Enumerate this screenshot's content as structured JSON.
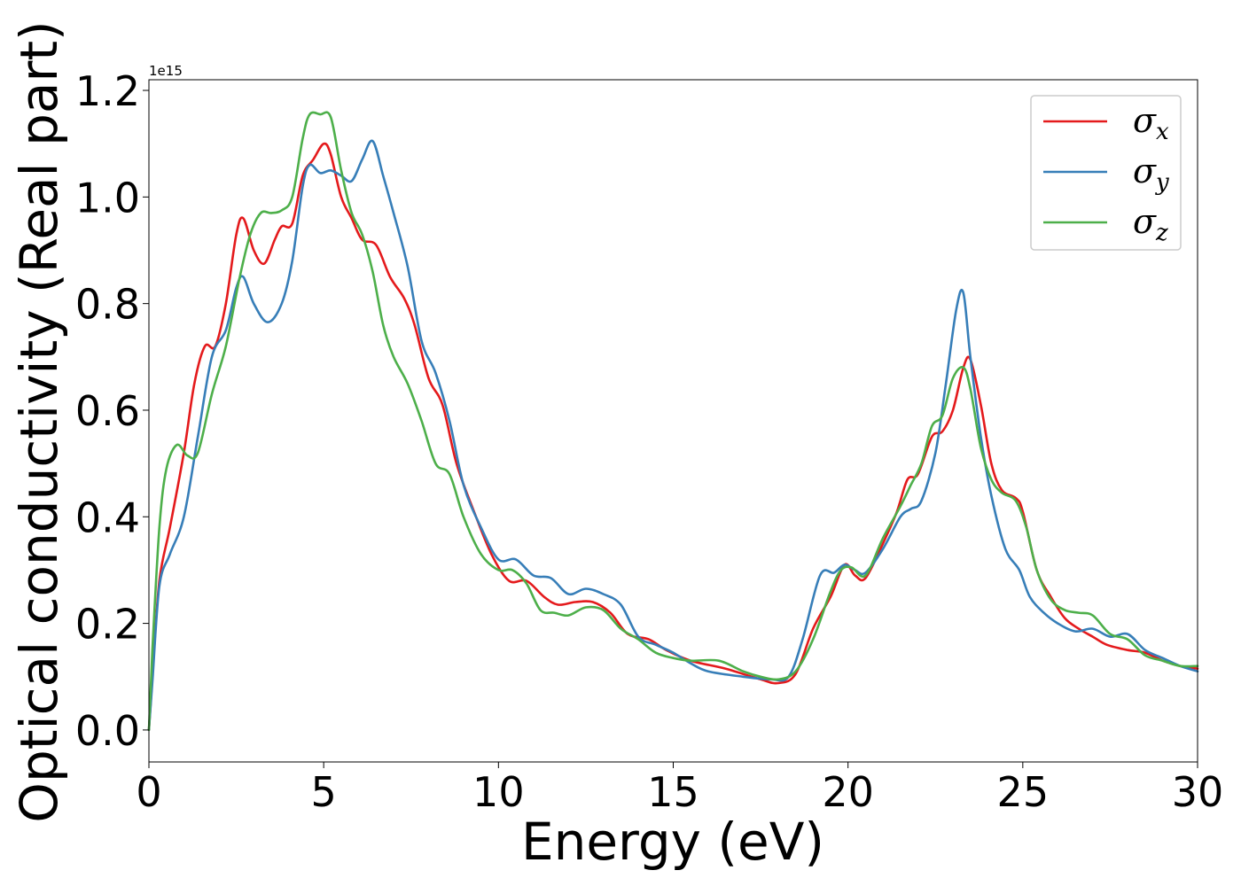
{
  "chart_data": {
    "type": "line",
    "title": "",
    "xlabel": "Energy (eV)",
    "ylabel": "Optical conductivity (Real part)",
    "y_offset_text": "1e15",
    "y_scale_factor": 1000000000000000.0,
    "xlim": [
      0,
      30
    ],
    "ylim": [
      -0.06,
      1.22
    ],
    "xticks": [
      0,
      5,
      10,
      15,
      20,
      25,
      30
    ],
    "xtick_labels": [
      "0",
      "5",
      "10",
      "15",
      "20",
      "25",
      "30"
    ],
    "yticks": [
      0.0,
      0.2,
      0.4,
      0.6,
      0.8,
      1.0,
      1.2
    ],
    "ytick_labels": [
      "0.0",
      "0.2",
      "0.4",
      "0.6",
      "0.8",
      "1.0",
      "1.2"
    ],
    "grid": false,
    "legend_position": "top-right",
    "series": [
      {
        "name": "σx",
        "label_base": "σ",
        "label_sub": "x",
        "color": "#e41a1c",
        "points": [
          [
            0,
            0
          ],
          [
            0.1,
            0.1
          ],
          [
            0.3,
            0.28
          ],
          [
            0.6,
            0.38
          ],
          [
            1.0,
            0.52
          ],
          [
            1.3,
            0.65
          ],
          [
            1.6,
            0.72
          ],
          [
            1.9,
            0.72
          ],
          [
            2.2,
            0.8
          ],
          [
            2.5,
            0.93
          ],
          [
            2.7,
            0.96
          ],
          [
            3.0,
            0.9
          ],
          [
            3.3,
            0.875
          ],
          [
            3.6,
            0.92
          ],
          [
            3.8,
            0.945
          ],
          [
            4.1,
            0.95
          ],
          [
            4.4,
            1.04
          ],
          [
            4.7,
            1.07
          ],
          [
            5.0,
            1.1
          ],
          [
            5.2,
            1.08
          ],
          [
            5.5,
            1.0
          ],
          [
            5.8,
            0.96
          ],
          [
            6.1,
            0.92
          ],
          [
            6.5,
            0.91
          ],
          [
            6.9,
            0.85
          ],
          [
            7.3,
            0.81
          ],
          [
            7.6,
            0.76
          ],
          [
            8.0,
            0.66
          ],
          [
            8.4,
            0.61
          ],
          [
            8.8,
            0.5
          ],
          [
            9.3,
            0.41
          ],
          [
            9.8,
            0.33
          ],
          [
            10.3,
            0.28
          ],
          [
            10.8,
            0.28
          ],
          [
            11.3,
            0.25
          ],
          [
            11.7,
            0.235
          ],
          [
            12.2,
            0.24
          ],
          [
            12.7,
            0.24
          ],
          [
            13.2,
            0.22
          ],
          [
            13.7,
            0.18
          ],
          [
            14.3,
            0.17
          ],
          [
            14.8,
            0.15
          ],
          [
            15.5,
            0.13
          ],
          [
            16.5,
            0.115
          ],
          [
            17.5,
            0.095
          ],
          [
            18.0,
            0.088
          ],
          [
            18.5,
            0.105
          ],
          [
            19.0,
            0.19
          ],
          [
            19.5,
            0.25
          ],
          [
            19.9,
            0.31
          ],
          [
            20.2,
            0.29
          ],
          [
            20.5,
            0.285
          ],
          [
            21.0,
            0.35
          ],
          [
            21.4,
            0.41
          ],
          [
            21.7,
            0.47
          ],
          [
            22.0,
            0.48
          ],
          [
            22.4,
            0.55
          ],
          [
            22.7,
            0.56
          ],
          [
            23.0,
            0.6
          ],
          [
            23.3,
            0.68
          ],
          [
            23.5,
            0.695
          ],
          [
            23.8,
            0.61
          ],
          [
            24.1,
            0.5
          ],
          [
            24.4,
            0.45
          ],
          [
            24.8,
            0.435
          ],
          [
            25.0,
            0.41
          ],
          [
            25.4,
            0.3
          ],
          [
            25.8,
            0.25
          ],
          [
            26.2,
            0.21
          ],
          [
            26.6,
            0.19
          ],
          [
            27.0,
            0.175
          ],
          [
            27.4,
            0.16
          ],
          [
            28.0,
            0.15
          ],
          [
            28.5,
            0.145
          ],
          [
            29.0,
            0.13
          ],
          [
            29.5,
            0.12
          ],
          [
            30.0,
            0.115
          ]
        ]
      },
      {
        "name": "σy",
        "label_base": "σ",
        "label_sub": "y",
        "color": "#377eb8",
        "points": [
          [
            0,
            0
          ],
          [
            0.1,
            0.09
          ],
          [
            0.3,
            0.27
          ],
          [
            0.6,
            0.33
          ],
          [
            1.0,
            0.4
          ],
          [
            1.4,
            0.55
          ],
          [
            1.8,
            0.7
          ],
          [
            2.2,
            0.75
          ],
          [
            2.5,
            0.83
          ],
          [
            2.7,
            0.85
          ],
          [
            3.0,
            0.8
          ],
          [
            3.4,
            0.765
          ],
          [
            3.8,
            0.8
          ],
          [
            4.1,
            0.88
          ],
          [
            4.4,
            1.02
          ],
          [
            4.6,
            1.06
          ],
          [
            4.9,
            1.045
          ],
          [
            5.2,
            1.05
          ],
          [
            5.5,
            1.04
          ],
          [
            5.8,
            1.03
          ],
          [
            6.1,
            1.07
          ],
          [
            6.4,
            1.105
          ],
          [
            6.7,
            1.04
          ],
          [
            7.0,
            0.97
          ],
          [
            7.4,
            0.87
          ],
          [
            7.8,
            0.73
          ],
          [
            8.2,
            0.67
          ],
          [
            8.6,
            0.58
          ],
          [
            9.0,
            0.46
          ],
          [
            9.5,
            0.38
          ],
          [
            10.0,
            0.32
          ],
          [
            10.5,
            0.32
          ],
          [
            11.0,
            0.29
          ],
          [
            11.5,
            0.285
          ],
          [
            12.0,
            0.255
          ],
          [
            12.5,
            0.265
          ],
          [
            13.0,
            0.255
          ],
          [
            13.5,
            0.235
          ],
          [
            14.0,
            0.175
          ],
          [
            14.5,
            0.16
          ],
          [
            15.0,
            0.145
          ],
          [
            15.5,
            0.125
          ],
          [
            16.0,
            0.11
          ],
          [
            17.0,
            0.1
          ],
          [
            17.8,
            0.095
          ],
          [
            18.3,
            0.1
          ],
          [
            18.7,
            0.17
          ],
          [
            19.2,
            0.29
          ],
          [
            19.6,
            0.295
          ],
          [
            19.9,
            0.31
          ],
          [
            20.2,
            0.3
          ],
          [
            20.5,
            0.295
          ],
          [
            21.0,
            0.34
          ],
          [
            21.5,
            0.4
          ],
          [
            21.8,
            0.415
          ],
          [
            22.1,
            0.43
          ],
          [
            22.5,
            0.52
          ],
          [
            22.8,
            0.65
          ],
          [
            23.1,
            0.79
          ],
          [
            23.3,
            0.82
          ],
          [
            23.5,
            0.7
          ],
          [
            23.8,
            0.55
          ],
          [
            24.1,
            0.44
          ],
          [
            24.5,
            0.34
          ],
          [
            24.9,
            0.3
          ],
          [
            25.2,
            0.25
          ],
          [
            25.6,
            0.22
          ],
          [
            26.0,
            0.2
          ],
          [
            26.5,
            0.185
          ],
          [
            27.0,
            0.19
          ],
          [
            27.5,
            0.175
          ],
          [
            28.0,
            0.18
          ],
          [
            28.5,
            0.15
          ],
          [
            29.0,
            0.135
          ],
          [
            29.5,
            0.12
          ],
          [
            30.0,
            0.11
          ]
        ]
      },
      {
        "name": "σz",
        "label_base": "σ",
        "label_sub": "z",
        "color": "#4daf4a",
        "points": [
          [
            0,
            0
          ],
          [
            0.1,
            0.15
          ],
          [
            0.3,
            0.38
          ],
          [
            0.5,
            0.49
          ],
          [
            0.8,
            0.535
          ],
          [
            1.1,
            0.515
          ],
          [
            1.4,
            0.52
          ],
          [
            1.8,
            0.63
          ],
          [
            2.2,
            0.72
          ],
          [
            2.6,
            0.85
          ],
          [
            2.9,
            0.93
          ],
          [
            3.2,
            0.97
          ],
          [
            3.5,
            0.97
          ],
          [
            3.8,
            0.975
          ],
          [
            4.1,
            1.0
          ],
          [
            4.4,
            1.11
          ],
          [
            4.6,
            1.155
          ],
          [
            4.9,
            1.155
          ],
          [
            5.2,
            1.15
          ],
          [
            5.5,
            1.05
          ],
          [
            5.8,
            0.97
          ],
          [
            6.1,
            0.93
          ],
          [
            6.4,
            0.86
          ],
          [
            6.7,
            0.76
          ],
          [
            7.0,
            0.7
          ],
          [
            7.4,
            0.65
          ],
          [
            7.8,
            0.58
          ],
          [
            8.2,
            0.5
          ],
          [
            8.6,
            0.48
          ],
          [
            9.0,
            0.4
          ],
          [
            9.5,
            0.33
          ],
          [
            10.0,
            0.3
          ],
          [
            10.4,
            0.3
          ],
          [
            10.8,
            0.275
          ],
          [
            11.2,
            0.225
          ],
          [
            11.6,
            0.22
          ],
          [
            12.0,
            0.215
          ],
          [
            12.5,
            0.23
          ],
          [
            13.0,
            0.225
          ],
          [
            13.5,
            0.19
          ],
          [
            14.0,
            0.17
          ],
          [
            14.5,
            0.145
          ],
          [
            15.0,
            0.135
          ],
          [
            15.5,
            0.13
          ],
          [
            16.3,
            0.13
          ],
          [
            17.0,
            0.11
          ],
          [
            17.5,
            0.1
          ],
          [
            18.0,
            0.095
          ],
          [
            18.5,
            0.11
          ],
          [
            19.0,
            0.17
          ],
          [
            19.5,
            0.26
          ],
          [
            19.8,
            0.3
          ],
          [
            20.1,
            0.305
          ],
          [
            20.5,
            0.29
          ],
          [
            21.0,
            0.36
          ],
          [
            21.5,
            0.42
          ],
          [
            21.8,
            0.46
          ],
          [
            22.1,
            0.5
          ],
          [
            22.4,
            0.57
          ],
          [
            22.7,
            0.59
          ],
          [
            23.0,
            0.66
          ],
          [
            23.3,
            0.68
          ],
          [
            23.5,
            0.64
          ],
          [
            23.8,
            0.53
          ],
          [
            24.1,
            0.47
          ],
          [
            24.4,
            0.445
          ],
          [
            24.8,
            0.43
          ],
          [
            25.1,
            0.38
          ],
          [
            25.4,
            0.3
          ],
          [
            25.8,
            0.245
          ],
          [
            26.2,
            0.225
          ],
          [
            26.6,
            0.22
          ],
          [
            27.0,
            0.215
          ],
          [
            27.5,
            0.18
          ],
          [
            28.0,
            0.17
          ],
          [
            28.5,
            0.14
          ],
          [
            29.0,
            0.13
          ],
          [
            29.5,
            0.12
          ],
          [
            30.0,
            0.12
          ]
        ]
      }
    ]
  }
}
